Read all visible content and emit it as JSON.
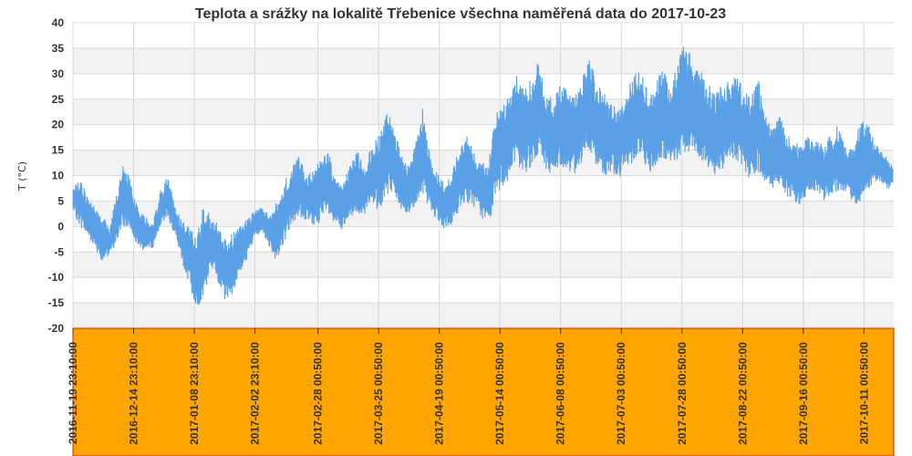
{
  "chart_data": {
    "type": "line",
    "title": "Teplota a srážky na lokalitě Třebenice všechna naměřená data do 2017-10-23",
    "ylabel": "T (°C)",
    "ylim": [
      -20,
      40
    ],
    "ytick_labels": [
      "40",
      "35",
      "30",
      "25",
      "20",
      "15",
      "10",
      "5",
      "0",
      "-5",
      "-10",
      "-15",
      "-20"
    ],
    "x_tick_labels": [
      "2016-11-19 23:10:00",
      "2016-12-14 23:10:00",
      "2017-01-08 23:10:00",
      "2017-02-02 23:10:00",
      "2017-02-28 00:50:00",
      "2017-03-25 00:50:00",
      "2017-04-19 00:50:00",
      "2017-05-14 00:50:00",
      "2017-06-08 00:50:00",
      "2017-07-03 00:50:00",
      "2017-07-28 00:50:00",
      "2017-08-22 00:50:00",
      "2017-09-16 00:50:00",
      "2017-10-11 00:50:00"
    ],
    "grid": true,
    "colors": {
      "series": "#5aa0e6",
      "band": "#f2f2f2",
      "grid": "#d8d8d8",
      "x_axis_panel": "#ffa500",
      "x_axis_border": "#cc2200"
    },
    "series": [
      {
        "values": [
          {
            "x": "2016-11-19",
            "min": 3,
            "max": 8
          },
          {
            "x": "2016-11-22",
            "min": 0,
            "max": 9
          },
          {
            "x": "2016-11-25",
            "min": -2,
            "max": 6
          },
          {
            "x": "2016-11-28",
            "min": -4,
            "max": 4
          },
          {
            "x": "2016-12-01",
            "min": -7,
            "max": 2
          },
          {
            "x": "2016-12-04",
            "min": -6,
            "max": 0
          },
          {
            "x": "2016-12-07",
            "min": -3,
            "max": 7
          },
          {
            "x": "2016-12-10",
            "min": 0,
            "max": 13
          },
          {
            "x": "2016-12-13",
            "min": -1,
            "max": 8
          },
          {
            "x": "2016-12-16",
            "min": -4,
            "max": 3
          },
          {
            "x": "2016-12-19",
            "min": -5,
            "max": 2
          },
          {
            "x": "2016-12-22",
            "min": -4,
            "max": 1
          },
          {
            "x": "2016-12-25",
            "min": 0,
            "max": 7
          },
          {
            "x": "2016-12-28",
            "min": 2,
            "max": 10
          },
          {
            "x": "2016-12-31",
            "min": -2,
            "max": 4
          },
          {
            "x": "2017-01-03",
            "min": -7,
            "max": 1
          },
          {
            "x": "2017-01-06",
            "min": -12,
            "max": 0
          },
          {
            "x": "2017-01-09",
            "min": -16,
            "max": -2
          },
          {
            "x": "2017-01-12",
            "min": -14,
            "max": 5
          },
          {
            "x": "2017-01-15",
            "min": -8,
            "max": 2
          },
          {
            "x": "2017-01-18",
            "min": -11,
            "max": 0
          },
          {
            "x": "2017-01-21",
            "min": -15,
            "max": -3
          },
          {
            "x": "2017-01-24",
            "min": -13,
            "max": -1
          },
          {
            "x": "2017-01-27",
            "min": -9,
            "max": 0
          },
          {
            "x": "2017-01-30",
            "min": -6,
            "max": 2
          },
          {
            "x": "2017-02-02",
            "min": -2,
            "max": 3
          },
          {
            "x": "2017-02-05",
            "min": -1,
            "max": 4
          },
          {
            "x": "2017-02-08",
            "min": -4,
            "max": 2
          },
          {
            "x": "2017-02-11",
            "min": -7,
            "max": 5
          },
          {
            "x": "2017-02-14",
            "min": -3,
            "max": 9
          },
          {
            "x": "2017-02-17",
            "min": 0,
            "max": 12
          },
          {
            "x": "2017-02-20",
            "min": 2,
            "max": 14
          },
          {
            "x": "2017-02-23",
            "min": 1,
            "max": 10
          },
          {
            "x": "2017-02-26",
            "min": 0,
            "max": 11
          },
          {
            "x": "2017-03-01",
            "min": 1,
            "max": 13
          },
          {
            "x": "2017-03-04",
            "min": 2,
            "max": 15
          },
          {
            "x": "2017-03-07",
            "min": 0,
            "max": 10
          },
          {
            "x": "2017-03-10",
            "min": -1,
            "max": 8
          },
          {
            "x": "2017-03-13",
            "min": 1,
            "max": 12
          },
          {
            "x": "2017-03-16",
            "min": 3,
            "max": 15
          },
          {
            "x": "2017-03-19",
            "min": 2,
            "max": 12
          },
          {
            "x": "2017-03-22",
            "min": 4,
            "max": 16
          },
          {
            "x": "2017-03-25",
            "min": 3,
            "max": 18
          },
          {
            "x": "2017-03-28",
            "min": 6,
            "max": 22
          },
          {
            "x": "2017-03-31",
            "min": 7,
            "max": 21
          },
          {
            "x": "2017-04-03",
            "min": 3,
            "max": 14
          },
          {
            "x": "2017-04-06",
            "min": 2,
            "max": 12
          },
          {
            "x": "2017-04-09",
            "min": 4,
            "max": 16
          },
          {
            "x": "2017-04-12",
            "min": 5,
            "max": 23
          },
          {
            "x": "2017-04-15",
            "min": 4,
            "max": 14
          },
          {
            "x": "2017-04-18",
            "min": 1,
            "max": 11
          },
          {
            "x": "2017-04-21",
            "min": -1,
            "max": 8
          },
          {
            "x": "2017-04-24",
            "min": 0,
            "max": 10
          },
          {
            "x": "2017-04-27",
            "min": 3,
            "max": 16
          },
          {
            "x": "2017-04-30",
            "min": 5,
            "max": 18
          },
          {
            "x": "2017-05-03",
            "min": 4,
            "max": 15
          },
          {
            "x": "2017-05-06",
            "min": 2,
            "max": 13
          },
          {
            "x": "2017-05-09",
            "min": 0,
            "max": 12
          },
          {
            "x": "2017-05-12",
            "min": 5,
            "max": 22
          },
          {
            "x": "2017-05-15",
            "min": 8,
            "max": 24
          },
          {
            "x": "2017-05-18",
            "min": 9,
            "max": 26
          },
          {
            "x": "2017-05-21",
            "min": 12,
            "max": 30
          },
          {
            "x": "2017-05-24",
            "min": 10,
            "max": 27
          },
          {
            "x": "2017-05-27",
            "min": 12,
            "max": 29
          },
          {
            "x": "2017-05-30",
            "min": 14,
            "max": 33
          },
          {
            "x": "2017-06-02",
            "min": 11,
            "max": 26
          },
          {
            "x": "2017-06-05",
            "min": 10,
            "max": 25
          },
          {
            "x": "2017-06-08",
            "min": 12,
            "max": 28
          },
          {
            "x": "2017-06-11",
            "min": 11,
            "max": 27
          },
          {
            "x": "2017-06-14",
            "min": 10,
            "max": 26
          },
          {
            "x": "2017-06-17",
            "min": 13,
            "max": 31
          },
          {
            "x": "2017-06-20",
            "min": 14,
            "max": 34
          },
          {
            "x": "2017-06-23",
            "min": 12,
            "max": 28
          },
          {
            "x": "2017-06-26",
            "min": 10,
            "max": 26
          },
          {
            "x": "2017-06-29",
            "min": 11,
            "max": 24
          },
          {
            "x": "2017-07-02",
            "min": 9,
            "max": 24
          },
          {
            "x": "2017-07-05",
            "min": 11,
            "max": 27
          },
          {
            "x": "2017-07-08",
            "min": 13,
            "max": 30
          },
          {
            "x": "2017-07-11",
            "min": 14,
            "max": 31
          },
          {
            "x": "2017-07-14",
            "min": 10,
            "max": 26
          },
          {
            "x": "2017-07-17",
            "min": 12,
            "max": 29
          },
          {
            "x": "2017-07-20",
            "min": 13,
            "max": 31
          },
          {
            "x": "2017-07-23",
            "min": 12,
            "max": 27
          },
          {
            "x": "2017-07-26",
            "min": 13,
            "max": 33
          },
          {
            "x": "2017-07-29",
            "min": 14,
            "max": 36
          },
          {
            "x": "2017-08-01",
            "min": 15,
            "max": 34
          },
          {
            "x": "2017-08-04",
            "min": 13,
            "max": 31
          },
          {
            "x": "2017-08-07",
            "min": 12,
            "max": 29
          },
          {
            "x": "2017-08-10",
            "min": 10,
            "max": 26
          },
          {
            "x": "2017-08-13",
            "min": 11,
            "max": 28
          },
          {
            "x": "2017-08-16",
            "min": 12,
            "max": 29
          },
          {
            "x": "2017-08-19",
            "min": 13,
            "max": 30
          },
          {
            "x": "2017-08-22",
            "min": 11,
            "max": 28
          },
          {
            "x": "2017-08-25",
            "min": 9,
            "max": 25
          },
          {
            "x": "2017-08-28",
            "min": 10,
            "max": 30
          },
          {
            "x": "2017-08-31",
            "min": 9,
            "max": 22
          },
          {
            "x": "2017-09-03",
            "min": 7,
            "max": 20
          },
          {
            "x": "2017-09-06",
            "min": 8,
            "max": 22
          },
          {
            "x": "2017-09-09",
            "min": 6,
            "max": 18
          },
          {
            "x": "2017-09-12",
            "min": 5,
            "max": 17
          },
          {
            "x": "2017-09-15",
            "min": 4,
            "max": 16
          },
          {
            "x": "2017-09-18",
            "min": 6,
            "max": 18
          },
          {
            "x": "2017-09-21",
            "min": 7,
            "max": 17
          },
          {
            "x": "2017-09-24",
            "min": 5,
            "max": 16
          },
          {
            "x": "2017-09-27",
            "min": 6,
            "max": 18
          },
          {
            "x": "2017-09-30",
            "min": 7,
            "max": 20
          },
          {
            "x": "2017-10-03",
            "min": 6,
            "max": 16
          },
          {
            "x": "2017-10-06",
            "min": 5,
            "max": 15
          },
          {
            "x": "2017-10-09",
            "min": 4,
            "max": 20
          },
          {
            "x": "2017-10-12",
            "min": 7,
            "max": 21
          },
          {
            "x": "2017-10-15",
            "min": 8,
            "max": 17
          },
          {
            "x": "2017-10-18",
            "min": 9,
            "max": 15
          },
          {
            "x": "2017-10-21",
            "min": 7,
            "max": 13
          },
          {
            "x": "2017-10-23",
            "min": 8,
            "max": 12
          }
        ]
      }
    ]
  }
}
